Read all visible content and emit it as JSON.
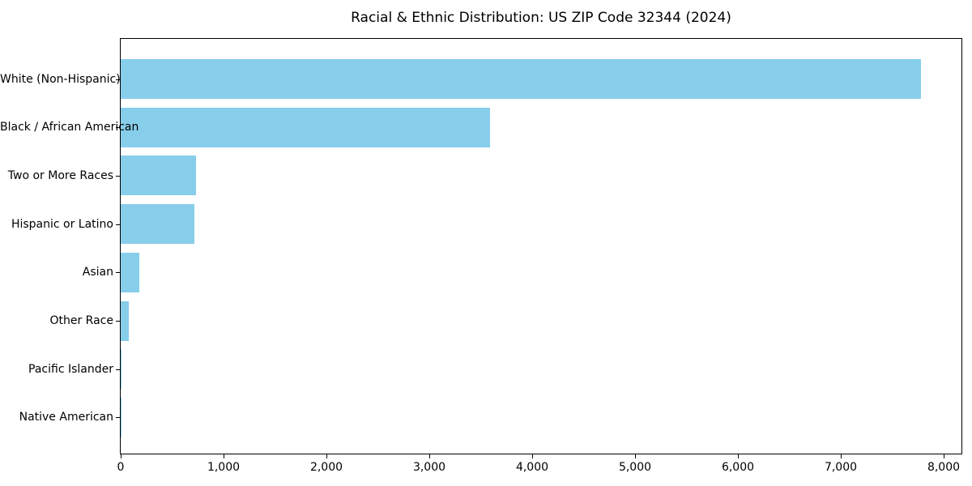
{
  "chart_data": {
    "type": "bar",
    "orientation": "horizontal",
    "title": "Racial & Ethnic Distribution: US ZIP Code 32344 (2024)",
    "xlabel": "",
    "ylabel": "",
    "categories": [
      "White (Non-Hispanic)",
      "Black / African American",
      "Two or More Races",
      "Hispanic or Latino",
      "Asian",
      "Other Race",
      "Pacific Islander",
      "Native American"
    ],
    "values": [
      7780,
      3595,
      730,
      715,
      182,
      80,
      8,
      3
    ],
    "xlim": [
      0,
      8176
    ],
    "x_ticks": [
      0,
      1000,
      2000,
      3000,
      4000,
      5000,
      6000,
      7000,
      8000
    ],
    "x_tick_labels": [
      "0",
      "1,000",
      "2,000",
      "3,000",
      "4,000",
      "5,000",
      "6,000",
      "7,000",
      "8,000"
    ],
    "bar_color": "#87ceeb",
    "background_color": "#ffffff",
    "axis_color": "#000000",
    "grid": false,
    "legend": null
  }
}
